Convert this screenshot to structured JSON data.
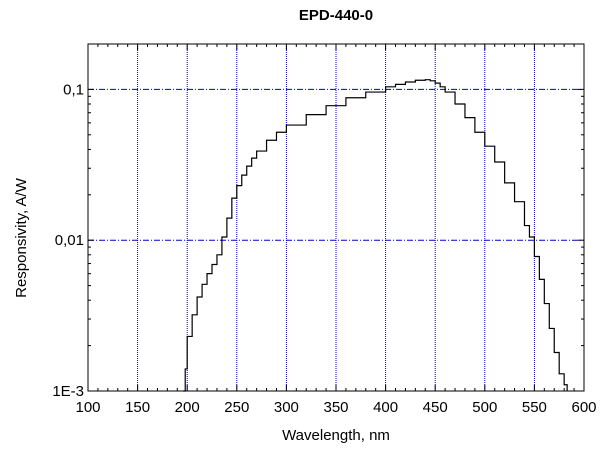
{
  "chart_data": {
    "type": "line",
    "title": "EPD-440-0",
    "xlabel": "Wavelength, nm",
    "ylabel": "Responsivity, A/W",
    "x_scale": "linear",
    "y_scale": "log",
    "xlim": [
      100,
      600
    ],
    "ylim": [
      0.001,
      0.2
    ],
    "grid": true,
    "x_ticks": [
      100,
      150,
      200,
      250,
      300,
      350,
      400,
      450,
      500,
      550,
      600
    ],
    "x_tick_labels": [
      "100",
      "150",
      "200",
      "250",
      "300",
      "350",
      "400",
      "450",
      "500",
      "550",
      "600"
    ],
    "y_ticks": [
      0.001,
      0.01,
      0.1
    ],
    "y_tick_labels": [
      "1E-3",
      "0,01",
      "0,1"
    ],
    "colors": {
      "grid": "#0000cc",
      "line": "#000000",
      "frame": "#000000"
    },
    "series": [
      {
        "x": [
          196,
          198,
          200,
          205,
          210,
          215,
          220,
          225,
          230,
          235,
          240,
          245,
          250,
          255,
          260,
          265,
          270,
          280,
          290,
          300,
          320,
          340,
          360,
          380,
          400,
          410,
          420,
          430,
          440,
          445,
          450,
          455,
          460,
          470,
          480,
          490,
          500,
          510,
          520,
          530,
          540,
          545,
          550,
          555,
          560,
          565,
          570,
          575,
          580,
          583
        ],
        "y": [
          0.001,
          0.0014,
          0.0023,
          0.0032,
          0.0042,
          0.0051,
          0.006,
          0.0069,
          0.008,
          0.0105,
          0.014,
          0.019,
          0.023,
          0.027,
          0.031,
          0.035,
          0.039,
          0.046,
          0.052,
          0.058,
          0.068,
          0.078,
          0.088,
          0.096,
          0.104,
          0.108,
          0.112,
          0.115,
          0.116,
          0.114,
          0.11,
          0.104,
          0.096,
          0.08,
          0.065,
          0.052,
          0.042,
          0.033,
          0.024,
          0.018,
          0.0125,
          0.0105,
          0.0078,
          0.0055,
          0.0038,
          0.0026,
          0.0018,
          0.0013,
          0.0011,
          0.001
        ]
      }
    ]
  }
}
